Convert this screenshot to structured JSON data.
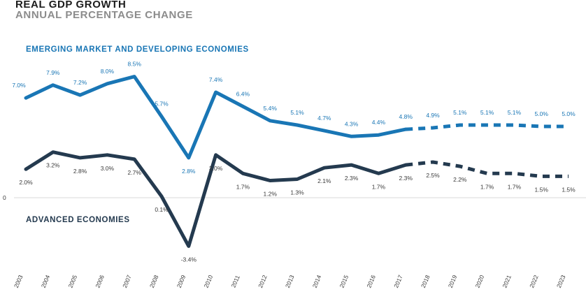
{
  "chart_data": {
    "type": "line",
    "title": "REAL GDP GROWTH",
    "subtitle": "ANNUAL PERCENTAGE CHANGE",
    "x": [
      "2003",
      "2004",
      "2005",
      "2006",
      "2007",
      "2008",
      "2009",
      "2010",
      "2011",
      "2012",
      "2013",
      "2014",
      "2015",
      "2016",
      "2017",
      "2018",
      "2019",
      "2020",
      "2021",
      "2022",
      "2023"
    ],
    "projection_start": "2017",
    "y_tick_labels": [
      "0"
    ],
    "ylim": [
      -4,
      10
    ],
    "series": [
      {
        "name": "EMERGING MARKET AND DEVELOPING ECONOMIES",
        "color": "#1976b5",
        "values": [
          7.0,
          7.9,
          7.2,
          8.0,
          8.5,
          5.7,
          2.8,
          7.4,
          6.4,
          5.4,
          5.1,
          4.7,
          4.3,
          4.4,
          4.8,
          4.9,
          5.1,
          5.1,
          5.1,
          5.0,
          5.0
        ],
        "labels": [
          "7.0%",
          "7.9%",
          "7.2%",
          "8.0%",
          "8.5%",
          "5.7%",
          "2.8%",
          "7.4%",
          "6.4%",
          "5.4%",
          "5.1%",
          "4.7%",
          "4.3%",
          "4.4%",
          "4.8%",
          "4.9%",
          "5.1%",
          "5.1%",
          "5.1%",
          "5.0%",
          "5.0%"
        ]
      },
      {
        "name": "ADVANCED ECONOMIES",
        "color": "#243a4f",
        "values": [
          2.0,
          3.2,
          2.8,
          3.0,
          2.7,
          0.1,
          -3.4,
          3.0,
          1.7,
          1.2,
          1.3,
          2.1,
          2.3,
          1.7,
          2.3,
          2.5,
          2.2,
          1.7,
          1.7,
          1.5,
          1.5
        ],
        "labels": [
          "2.0%",
          "3.2%",
          "2.8%",
          "3.0%",
          "2.7%",
          "0.1%",
          "-3.4%",
          "3.0%",
          "1.7%",
          "1.2%",
          "1.3%",
          "2.1%",
          "2.3%",
          "1.7%",
          "2.3%",
          "2.5%",
          "2.2%",
          "1.7%",
          "1.7%",
          "1.5%",
          "1.5%"
        ]
      }
    ]
  }
}
